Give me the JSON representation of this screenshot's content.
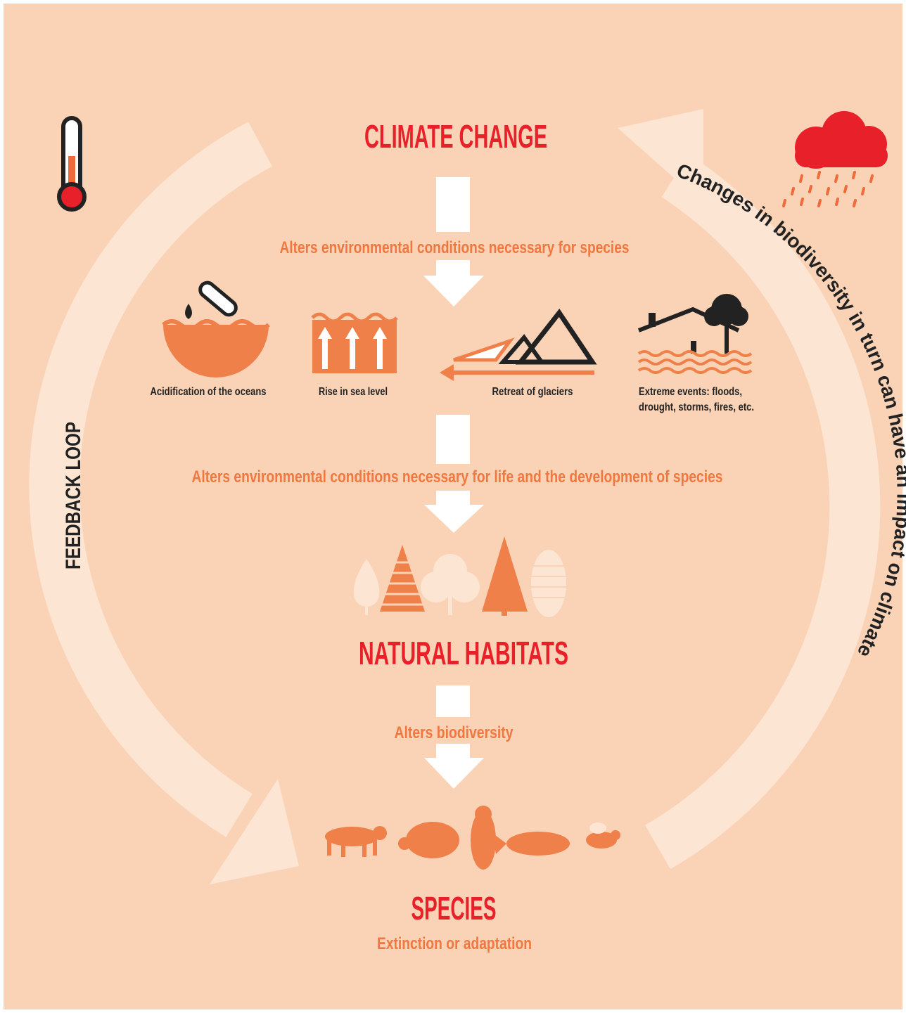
{
  "title": "CLIMATE CHANGE",
  "steps": [
    {
      "label": "Alters environmental conditions necessary for species"
    },
    {
      "label": "Alters environmental conditions necessary for life and the development of species"
    },
    {
      "label": "Alters biodiversity"
    }
  ],
  "impacts": [
    {
      "label": [
        "Acidification of the oceans"
      ]
    },
    {
      "label": [
        "Rise in sea level"
      ]
    },
    {
      "label": [
        "Retreat of glaciers"
      ]
    },
    {
      "label": [
        "Extreme events: floods,",
        "drought, storms, fires, etc."
      ]
    }
  ],
  "habitats": {
    "title": "NATURAL HABITATS"
  },
  "species": {
    "title": "SPECIES",
    "subtitle": "Extinction or adaptation"
  },
  "left_loop": {
    "label": "FEEDBACK LOOP"
  },
  "right_loop": {
    "label": "Changes in biodiversity in turn can have an impact on climate"
  }
}
